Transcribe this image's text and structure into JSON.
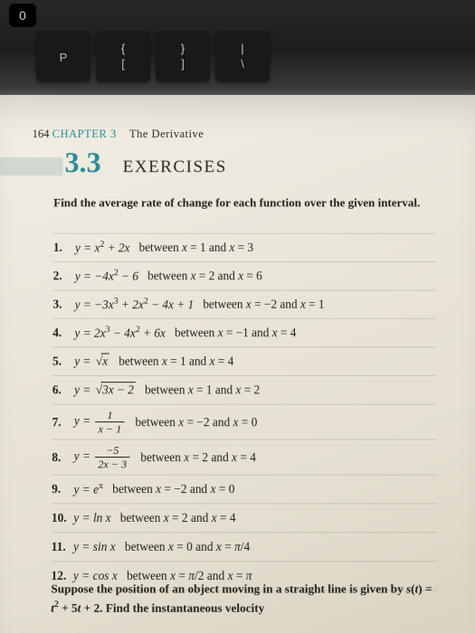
{
  "badge": "0",
  "keyboard": [
    {
      "top": "",
      "bot": "P"
    },
    {
      "top": "{",
      "bot": "["
    },
    {
      "top": "}",
      "bot": "]"
    },
    {
      "top": "|",
      "bot": "\\"
    }
  ],
  "page": {
    "page_number": "164",
    "chapter_label": "CHAPTER 3",
    "chapter_title": "The Derivative",
    "section_number": "3.3",
    "section_title": "EXERCISES",
    "instruction": "Find the average rate of change for each function over the given interval.",
    "problems": [
      {
        "n": "1.",
        "eq": "y = x² + 2x",
        "b": "between x = 1 and x = 3"
      },
      {
        "n": "2.",
        "eq": "y = −4x² − 6",
        "b": "between x = 2 and x = 6"
      },
      {
        "n": "3.",
        "eq": "y = −3x³ + 2x² − 4x + 1",
        "b": "between x = −2 and x = 1"
      },
      {
        "n": "4.",
        "eq": "y = 2x³ − 4x² + 6x",
        "b": "between x = −1 and x = 4"
      },
      {
        "n": "5.",
        "eq_sqrt": {
          "pre": "y = ",
          "rad": "x"
        },
        "b": "between x = 1 and x = 4"
      },
      {
        "n": "6.",
        "eq_sqrt": {
          "pre": "y = ",
          "rad": "3x − 2"
        },
        "b": "between x = 1 and x = 2"
      },
      {
        "n": "7.",
        "eq_frac": {
          "pre": "y = ",
          "num": "1",
          "den": "x − 1"
        },
        "b": "between   x = −2 and x = 0"
      },
      {
        "n": "8.",
        "eq_frac": {
          "pre": "y = ",
          "num": "−5",
          "den": "2x − 3"
        },
        "b": "between   x = 2 and x = 4"
      },
      {
        "n": "9.",
        "eq_html": "y = e<sup>x</sup>",
        "b": "between x = −2 and x = 0"
      },
      {
        "n": "10.",
        "eq": "y = ln x",
        "b": "between x = 2 and x = 4"
      },
      {
        "n": "11.",
        "eq": "y = sin x",
        "b": "between   x = 0 and x = π/4"
      },
      {
        "n": "12.",
        "eq": "y = cos x",
        "b": "between   x = π/2 and x = π"
      }
    ],
    "suppose": "Suppose the position of an object moving in a straight line is given by s(t) = t² + 5t + 2. Find the instantaneous velocity"
  },
  "style": {
    "accent_color": "#2c8a94",
    "page_bg_start": "#f2eee4",
    "page_bg_end": "#d8d2c2",
    "body_font_size_pt": 13,
    "section_num_font_size_pt": 32,
    "section_title_font_size_pt": 19,
    "rule_color": "rgba(120,115,100,0.25)"
  }
}
